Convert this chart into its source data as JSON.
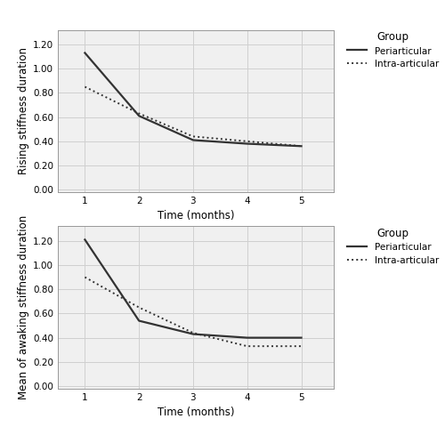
{
  "top": {
    "ylabel": "Rising stiffness duration",
    "xlabel": "Time (months)",
    "periarticular": [
      1.13,
      0.61,
      0.41,
      0.38,
      0.36
    ],
    "intra_articular": [
      0.85,
      0.63,
      0.44,
      0.4,
      0.36
    ],
    "x": [
      1,
      2,
      3,
      4,
      5
    ],
    "ylim": [
      -0.02,
      1.32
    ],
    "yticks": [
      0.0,
      0.2,
      0.4,
      0.6,
      0.8,
      1.0,
      1.2
    ]
  },
  "bottom": {
    "ylabel": "Mean of awaking stiffness duration",
    "xlabel": "Time (months)",
    "periarticular": [
      1.21,
      0.54,
      0.43,
      0.4,
      0.4
    ],
    "intra_articular": [
      0.9,
      0.65,
      0.44,
      0.33,
      0.33
    ],
    "x": [
      1,
      2,
      3,
      4,
      5
    ],
    "ylim": [
      -0.02,
      1.32
    ],
    "yticks": [
      0.0,
      0.2,
      0.4,
      0.6,
      0.8,
      1.0,
      1.2
    ]
  },
  "line_color": "#333333",
  "legend_title": "Group",
  "legend_periarticular": "Periarticular",
  "legend_intra_articular": "Intra-articular",
  "grid_color": "#d0d0d0",
  "bg_color": "#f0f0f0",
  "font_size": 8.5,
  "legend_font_size": 7.5,
  "xlim": [
    0.5,
    5.6
  ]
}
